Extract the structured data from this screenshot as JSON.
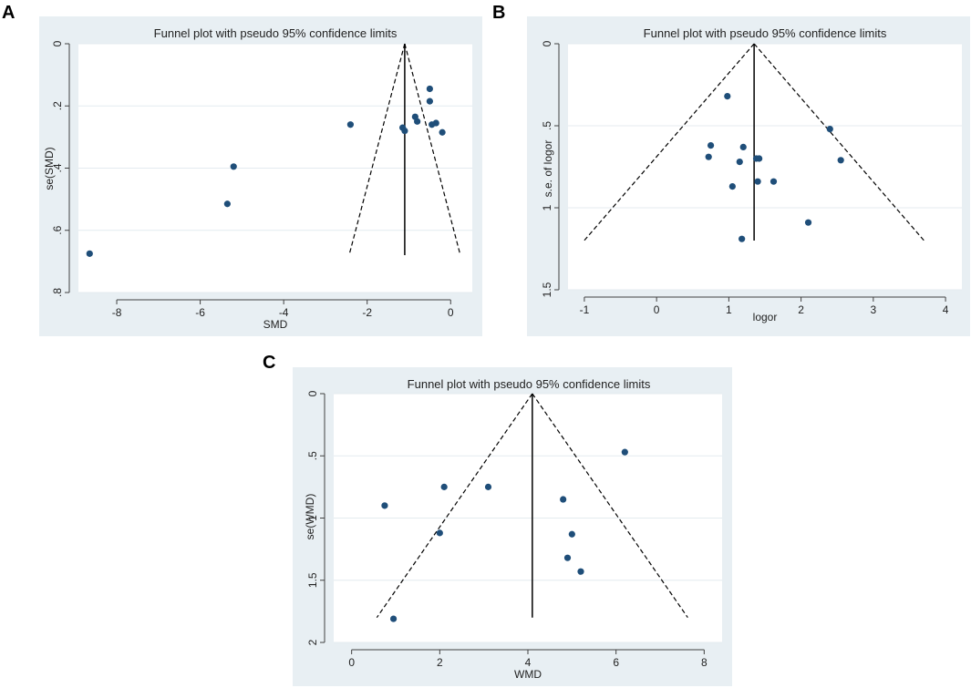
{
  "panels": [
    {
      "letter": "A",
      "chart_data": {
        "type": "scatter",
        "title": "Funnel plot with pseudo 95% confidence limits",
        "xlabel": "SMD",
        "ylabel": "se(SMD)",
        "xlim": [
          -8.7,
          0.3
        ],
        "ylim": [
          0,
          0.8
        ],
        "y_reversed": true,
        "xticks": [
          -8,
          -6,
          -4,
          -2,
          0
        ],
        "xtick_labels": [
          "-8",
          "-6",
          "-4",
          "-2",
          "0"
        ],
        "yticks": [
          0,
          0.2,
          0.4,
          0.6,
          0.8
        ],
        "ytick_labels": [
          "0",
          ".2",
          ".4",
          ".6",
          ".8"
        ],
        "grid_y": true,
        "pooled_estimate": -1.1,
        "se_max": 0.68,
        "points": [
          {
            "x": -8.65,
            "y": 0.675
          },
          {
            "x": -5.35,
            "y": 0.515
          },
          {
            "x": -5.2,
            "y": 0.395
          },
          {
            "x": -2.4,
            "y": 0.26
          },
          {
            "x": -1.15,
            "y": 0.27
          },
          {
            "x": -1.1,
            "y": 0.28
          },
          {
            "x": -0.85,
            "y": 0.235
          },
          {
            "x": -0.8,
            "y": 0.25
          },
          {
            "x": -0.5,
            "y": 0.145
          },
          {
            "x": -0.5,
            "y": 0.185
          },
          {
            "x": -0.45,
            "y": 0.26
          },
          {
            "x": -0.35,
            "y": 0.255
          },
          {
            "x": -0.2,
            "y": 0.285
          }
        ]
      }
    },
    {
      "letter": "B",
      "chart_data": {
        "type": "scatter",
        "title": "Funnel plot with pseudo 95% confidence limits",
        "xlabel": "logor",
        "ylabel": "s.e. of logor",
        "xlim": [
          -1.1,
          4.1
        ],
        "ylim": [
          0,
          1.5
        ],
        "y_reversed": true,
        "xticks": [
          -1,
          0,
          1,
          2,
          3,
          4
        ],
        "xtick_labels": [
          "-1",
          "0",
          "1",
          "2",
          "3",
          "4"
        ],
        "yticks": [
          0,
          0.5,
          1,
          1.5
        ],
        "ytick_labels": [
          "0",
          ".5",
          "1",
          "1.5"
        ],
        "grid_y": true,
        "pooled_estimate": 1.35,
        "se_max": 1.2,
        "points": [
          {
            "x": 0.98,
            "y": 0.32
          },
          {
            "x": 0.75,
            "y": 0.62
          },
          {
            "x": 0.72,
            "y": 0.69
          },
          {
            "x": 1.2,
            "y": 0.63
          },
          {
            "x": 1.15,
            "y": 0.72
          },
          {
            "x": 1.38,
            "y": 0.7
          },
          {
            "x": 1.42,
            "y": 0.7
          },
          {
            "x": 1.05,
            "y": 0.87
          },
          {
            "x": 1.4,
            "y": 0.84
          },
          {
            "x": 1.62,
            "y": 0.84
          },
          {
            "x": 1.18,
            "y": 1.19
          },
          {
            "x": 2.1,
            "y": 1.09
          },
          {
            "x": 2.4,
            "y": 0.52
          },
          {
            "x": 2.55,
            "y": 0.71
          }
        ]
      }
    },
    {
      "letter": "C",
      "chart_data": {
        "type": "scatter",
        "title": "Funnel plot with pseudo 95% confidence limits",
        "xlabel": "WMD",
        "ylabel": "se(WMD)",
        "xlim": [
          -0.2,
          8.2
        ],
        "ylim": [
          0,
          2
        ],
        "y_reversed": true,
        "xticks": [
          0,
          2,
          4,
          6,
          8
        ],
        "xtick_labels": [
          "0",
          "2",
          "4",
          "6",
          "8"
        ],
        "yticks": [
          0,
          0.5,
          1,
          1.5,
          2
        ],
        "ytick_labels": [
          "0",
          ".5",
          "1",
          "1.5",
          "2"
        ],
        "grid_y": true,
        "pooled_estimate": 4.1,
        "se_max": 1.8,
        "points": [
          {
            "x": 0.75,
            "y": 0.9
          },
          {
            "x": 0.95,
            "y": 1.81
          },
          {
            "x": 2.0,
            "y": 1.12
          },
          {
            "x": 2.1,
            "y": 0.75
          },
          {
            "x": 3.1,
            "y": 0.75
          },
          {
            "x": 4.8,
            "y": 0.85
          },
          {
            "x": 5.0,
            "y": 1.13
          },
          {
            "x": 4.9,
            "y": 1.32
          },
          {
            "x": 5.2,
            "y": 1.43
          },
          {
            "x": 6.2,
            "y": 0.47
          }
        ]
      }
    }
  ],
  "colors": {
    "panel_bg": "#e8eff3",
    "plot_bg": "#ffffff",
    "marker": "#1f4e79",
    "line": "#000000",
    "grid": "#e4ebef",
    "axis": "#404040"
  }
}
